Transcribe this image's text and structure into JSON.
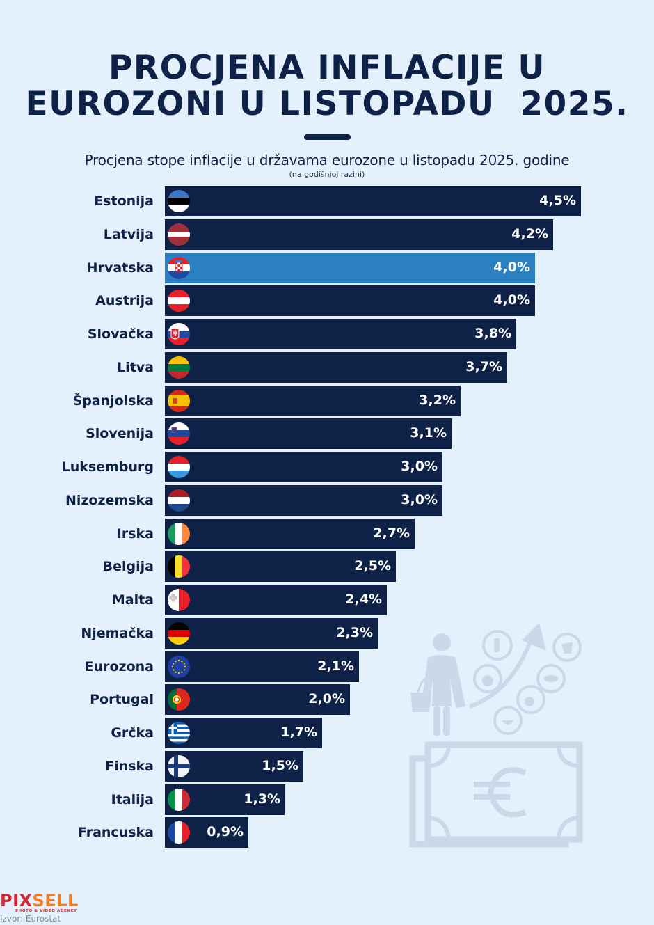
{
  "title": {
    "line1": "PROCJENA INFLACIJE U",
    "line2": "EUROZONI U LISTOPADU  2025."
  },
  "subtitle": "Procjena stope inflacije u državama eurozone u listopadu 2025. godine",
  "subnote": "(na godišnjoj razini)",
  "colors": {
    "background": "#e4f0fc",
    "bar": "#0e2248",
    "highlight_bar": "#2a80c0",
    "text": "#0e2248",
    "illustration": "#c9d9ea"
  },
  "chart_data": {
    "type": "bar",
    "orientation": "horizontal",
    "title": "Procjena stope inflacije u državama eurozone u listopadu 2025. godine",
    "subtitle": "(na godišnjoj razini)",
    "xlabel": "",
    "ylabel": "",
    "unit": "%",
    "xlim": [
      0,
      4.5
    ],
    "grid": false,
    "highlight": "Hrvatska",
    "categories": [
      "Estonija",
      "Latvija",
      "Hrvatska",
      "Austrija",
      "Slovačka",
      "Litva",
      "Španjolska",
      "Slovenija",
      "Luksemburg",
      "Nizozemska",
      "Irska",
      "Belgija",
      "Malta",
      "Njemačka",
      "Eurozona",
      "Portugal",
      "Grčka",
      "Finska",
      "Italija",
      "Francuska"
    ],
    "values": [
      4.5,
      4.2,
      4.0,
      4.0,
      3.8,
      3.7,
      3.2,
      3.1,
      3.0,
      3.0,
      2.7,
      2.5,
      2.4,
      2.3,
      2.1,
      2.0,
      1.7,
      1.5,
      1.3,
      0.9
    ],
    "value_labels": [
      "4,5%",
      "4,2%",
      "4,0%",
      "4,0%",
      "3,8%",
      "3,7%",
      "3,2%",
      "3,1%",
      "3,0%",
      "3,0%",
      "2,7%",
      "2,5%",
      "2,4%",
      "2,3%",
      "2,1%",
      "2,0%",
      "1,7%",
      "1,5%",
      "1,3%",
      "0,9%"
    ],
    "flags": [
      "estonia-flag",
      "latvia-flag",
      "croatia-flag",
      "austria-flag",
      "slovakia-flag",
      "lithuania-flag",
      "spain-flag",
      "slovenia-flag",
      "luxembourg-flag",
      "netherlands-flag",
      "ireland-flag",
      "belgium-flag",
      "malta-flag",
      "germany-flag",
      "eu-flag",
      "portugal-flag",
      "greece-flag",
      "finland-flag",
      "italy-flag",
      "france-flag"
    ]
  },
  "illustration": {
    "icons": [
      "shopper-icon",
      "shopping-basket-icon",
      "rising-arrow-icon",
      "bottle-icon",
      "apple-icon",
      "bowl-icon",
      "meat-icon",
      "fish-icon",
      "cow-icon",
      "euro-banknote-icon"
    ]
  },
  "footer": {
    "logo_part1": "PIX",
    "logo_part2": "SELL",
    "logo_tagline": "PHOTO & VIDEO AGENCY",
    "source": "Izvor: Eurostat"
  }
}
